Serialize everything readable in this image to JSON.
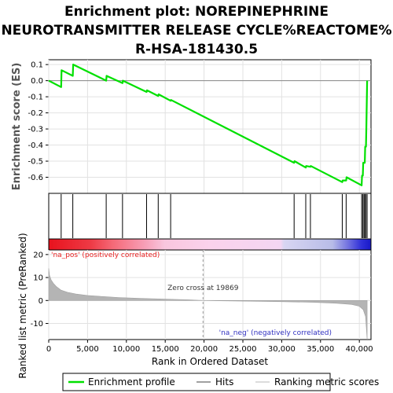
{
  "chart_data": {
    "type": "line",
    "title_lines": [
      "Enrichment plot: NOREPINEPHRINE",
      "NEUROTRANSMITTER RELEASE CYCLE%REACTOME%",
      "R-HSA-181430.5"
    ],
    "es_panel": {
      "ylabel": "Enrichment score (ES)",
      "ylim": [
        -0.7,
        0.13
      ],
      "yticks": [
        -0.6,
        -0.5,
        -0.4,
        -0.3,
        -0.2,
        -0.1,
        0.0,
        0.1
      ],
      "ytick_labels": [
        "-0.6",
        "-0.5",
        "-0.4",
        "-0.3",
        "-0.2",
        "-0.1",
        "0.0",
        "0.1"
      ],
      "grid": true,
      "line_color": "#00e000",
      "series": [
        {
          "x": [
            0,
            1600,
            1650,
            3100,
            3150,
            7400,
            7450,
            9500,
            9550,
            12600,
            12650,
            14100,
            14150,
            15700,
            15750,
            31600,
            31650,
            33100,
            33150,
            33700,
            33750,
            37800,
            37850,
            38300,
            38350,
            40300,
            40350,
            40450,
            40500,
            40700,
            40750,
            40850,
            40900,
            41000
          ],
          "y": [
            0.0,
            -0.04,
            0.065,
            0.03,
            0.1,
            0.0,
            0.03,
            -0.015,
            0.0,
            -0.07,
            -0.06,
            -0.095,
            -0.085,
            -0.125,
            -0.12,
            -0.51,
            -0.5,
            -0.54,
            -0.53,
            -0.535,
            -0.53,
            -0.63,
            -0.62,
            -0.62,
            -0.6,
            -0.65,
            -0.59,
            -0.59,
            -0.51,
            -0.51,
            -0.41,
            -0.41,
            -0.29,
            0.0
          ]
        }
      ]
    },
    "hits": {
      "positions": [
        1600,
        3100,
        7400,
        9500,
        12600,
        14100,
        15700,
        31600,
        33100,
        33700,
        37800,
        38300,
        40300,
        40450,
        40600,
        40700,
        40850,
        41000
      ]
    },
    "ranking": {
      "ylabel": "Ranked list metric (PreRanked)",
      "xlabel": "Rank in Ordered Dataset",
      "xlim": [
        0,
        41500
      ],
      "ylim": [
        -17,
        22
      ],
      "yticks": [
        -10,
        0,
        10,
        20
      ],
      "ytick_labels": [
        "-10",
        "0",
        "10",
        "20"
      ],
      "xticks": [
        0,
        5000,
        10000,
        15000,
        20000,
        25000,
        30000,
        35000,
        40000
      ],
      "xtick_labels": [
        "0",
        "5,000",
        "10,000",
        "15,000",
        "20,000",
        "25,000",
        "30,000",
        "35,000",
        "40,000"
      ],
      "zero_cross": 19869,
      "zero_cross_label": "Zero cross at 19869",
      "pos_label": "'na_pos' (positively correlated)",
      "neg_label": "'na_neg' (negatively correlated)",
      "metric_profile": [
        [
          0,
          14
        ],
        [
          100,
          11
        ],
        [
          300,
          9
        ],
        [
          600,
          7.5
        ],
        [
          1000,
          6
        ],
        [
          1600,
          4.5
        ],
        [
          2500,
          3.5
        ],
        [
          3500,
          2.8
        ],
        [
          5000,
          2.2
        ],
        [
          7000,
          1.7
        ],
        [
          9000,
          1.3
        ],
        [
          12000,
          0.9
        ],
        [
          15000,
          0.6
        ],
        [
          18000,
          0.3
        ],
        [
          19869,
          0.0
        ],
        [
          22000,
          -0.15
        ],
        [
          26000,
          -0.3
        ],
        [
          30000,
          -0.5
        ],
        [
          34000,
          -0.8
        ],
        [
          37000,
          -1.2
        ],
        [
          39000,
          -1.7
        ],
        [
          40000,
          -2.5
        ],
        [
          40500,
          -4
        ],
        [
          40800,
          -7
        ],
        [
          41000,
          -17
        ]
      ]
    },
    "gradient": {
      "stops": [
        [
          0.0,
          "#e8121d"
        ],
        [
          0.13,
          "#ee3a45"
        ],
        [
          0.2,
          "#f56a78"
        ],
        [
          0.3,
          "#f7a0b8"
        ],
        [
          0.36,
          "#f9c6de"
        ],
        [
          0.5,
          "#fbd2ec"
        ],
        [
          0.72,
          "#f3d6f2"
        ],
        [
          0.73,
          "#d8d6f2"
        ],
        [
          0.88,
          "#b8bce8"
        ],
        [
          0.93,
          "#7070e0"
        ],
        [
          0.97,
          "#3030d8"
        ],
        [
          1.0,
          "#1818c8"
        ]
      ]
    },
    "legend": {
      "placement": "bottom",
      "items": [
        {
          "label": "Enrichment profile",
          "color": "#00e000",
          "kind": "thick-line"
        },
        {
          "label": "Hits",
          "color": "#808080",
          "kind": "thin-line"
        },
        {
          "label": "Ranking metric scores",
          "color": "#d0d0d0",
          "kind": "light-line"
        }
      ]
    }
  }
}
